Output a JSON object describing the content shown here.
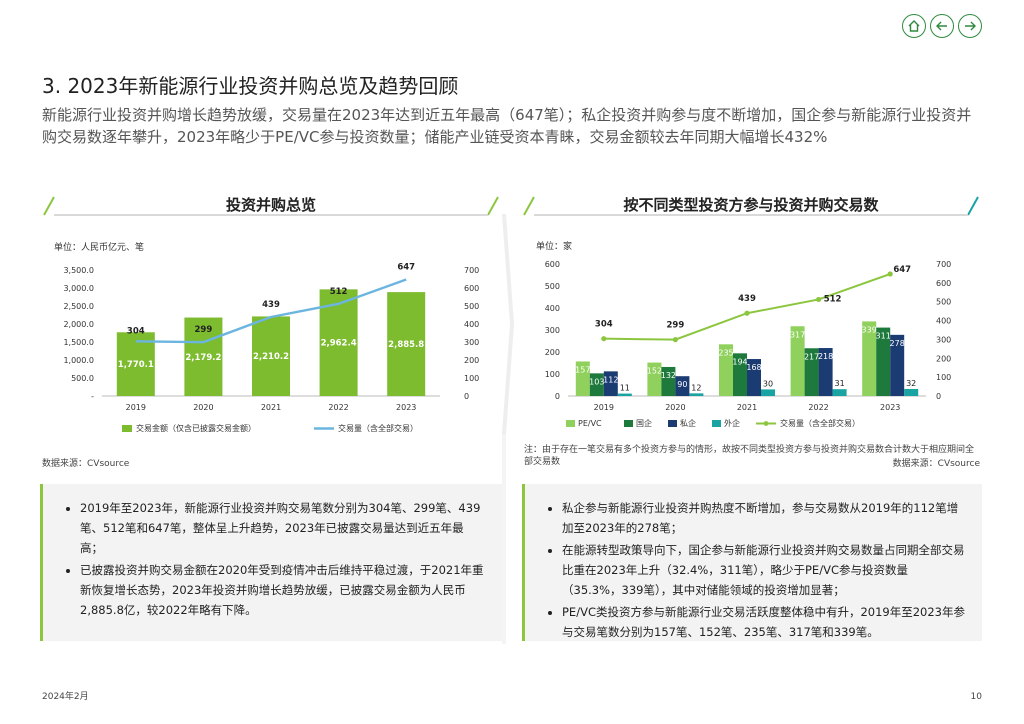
{
  "header": {
    "title": "3. 2023年新能源行业投资并购总览及趋势回顾",
    "summary": "新能源行业投资并购增长趋势放缓，交易量在2023年达到近五年最高（647笔）；私企投资并购参与度不断增加，国企参与新能源行业投资并购交易数逐年攀升，2023年略少于PE/VC参与投资数量；储能产业链受资本青睐，交易金额较去年同期大幅增长432%"
  },
  "nav": {
    "icons": [
      "home-icon",
      "arrow-left-icon",
      "arrow-right-icon"
    ]
  },
  "left_panel": {
    "title": "投资并购总览",
    "unit": "单位：人民币亿元、笔",
    "source": "数据来源：CVsource",
    "bullets": [
      "2019年至2023年，新能源行业投资并购交易笔数分别为304笔、299笔、439笔、512笔和647笔，整体呈上升趋势，2023年已披露交易量达到近五年最高；",
      "已披露投资并购交易金额在2020年受到疫情冲击后维持平稳过渡，于2021年重新恢复增长态势，2023年投资并购增长趋势放缓，已披露交易金额为人民币2,885.8亿，较2022年略有下降。"
    ]
  },
  "right_panel": {
    "title": "按不同类型投资方参与投资并购交易数",
    "unit": "单位：家",
    "note": "注：由于存在一笔交易有多个投资方参与的情形，故按不同类型投资方参与投资并购交易数合计数大于相应期间全部交易数",
    "source": "数据来源：CVsource",
    "bullets": [
      "私企参与新能源行业投资并购热度不断增加，参与交易数从2019年的112笔增加至2023年的278笔；",
      "在能源转型政策导向下，国企参与新能源行业投资并购交易数量占同期全部交易比重在2023年上升（32.4%，311笔），略少于PE/VC参与投资数量（35.3%，339笔），其中对储能领域的投资增加显著；",
      "PE/VC类投资方参与新能源行业交易活跃度整体稳中有升，2019年至2023年参与交易笔数分别为157笔、152笔、235笔、317笔和339笔。"
    ]
  },
  "chart_data": [
    {
      "type": "bar",
      "categories": [
        "2019",
        "2020",
        "2021",
        "2022",
        "2023"
      ],
      "series": [
        {
          "name": "交易金额（仅含已披露交易金额）",
          "type": "bar",
          "axis": "left",
          "values": [
            1770.1,
            2179.2,
            2210.2,
            2962.4,
            2885.8
          ],
          "labels": [
            "1,770.1",
            "2,179.2",
            "2,210.2",
            "2,962.4",
            "2,885.8"
          ],
          "color": "#7dbb2f"
        },
        {
          "name": "交易量（含全部交易）",
          "type": "line",
          "axis": "right",
          "values": [
            304,
            299,
            439,
            512,
            647
          ],
          "labels": [
            "304",
            "299",
            "439",
            "512",
            "647"
          ],
          "color": "#6bb5e0"
        }
      ],
      "left_axis": {
        "ylim": [
          0,
          3500
        ],
        "ticks": [
          "-",
          "500.0",
          "1,000.0",
          "1,500.0",
          "2,000.0",
          "2,500.0",
          "3,000.0",
          "3,500.0"
        ]
      },
      "right_axis": {
        "ylim": [
          0,
          700
        ],
        "ticks": [
          "0",
          "100",
          "200",
          "300",
          "400",
          "500",
          "600",
          "700"
        ]
      },
      "legend": "bottom"
    },
    {
      "type": "bar",
      "categories": [
        "2019",
        "2020",
        "2021",
        "2022",
        "2023"
      ],
      "series": [
        {
          "name": "PE/VC",
          "values": [
            157,
            152,
            235,
            317,
            339
          ],
          "color": "#8fd15c"
        },
        {
          "name": "国企",
          "values": [
            103,
            132,
            194,
            217,
            311
          ],
          "color": "#1e7a3c"
        },
        {
          "name": "私企",
          "values": [
            112,
            90,
            168,
            218,
            278
          ],
          "color": "#1b3c73"
        },
        {
          "name": "外企",
          "values": [
            11,
            12,
            30,
            31,
            32
          ],
          "color": "#1aa3a3"
        },
        {
          "name": "交易量（含全部交易）",
          "type": "line",
          "axis": "right",
          "values": [
            304,
            299,
            439,
            512,
            647
          ],
          "color": "#8cc63f"
        }
      ],
      "left_axis": {
        "ylim": [
          0,
          600
        ],
        "ticks": [
          "0",
          "100",
          "200",
          "300",
          "400",
          "500",
          "600"
        ]
      },
      "right_axis": {
        "ylim": [
          0,
          700
        ],
        "ticks": [
          "0",
          "100",
          "200",
          "300",
          "400",
          "500",
          "600",
          "700"
        ]
      },
      "legend": "bottom"
    }
  ],
  "footer": {
    "date": "2024年2月",
    "page": "10"
  }
}
